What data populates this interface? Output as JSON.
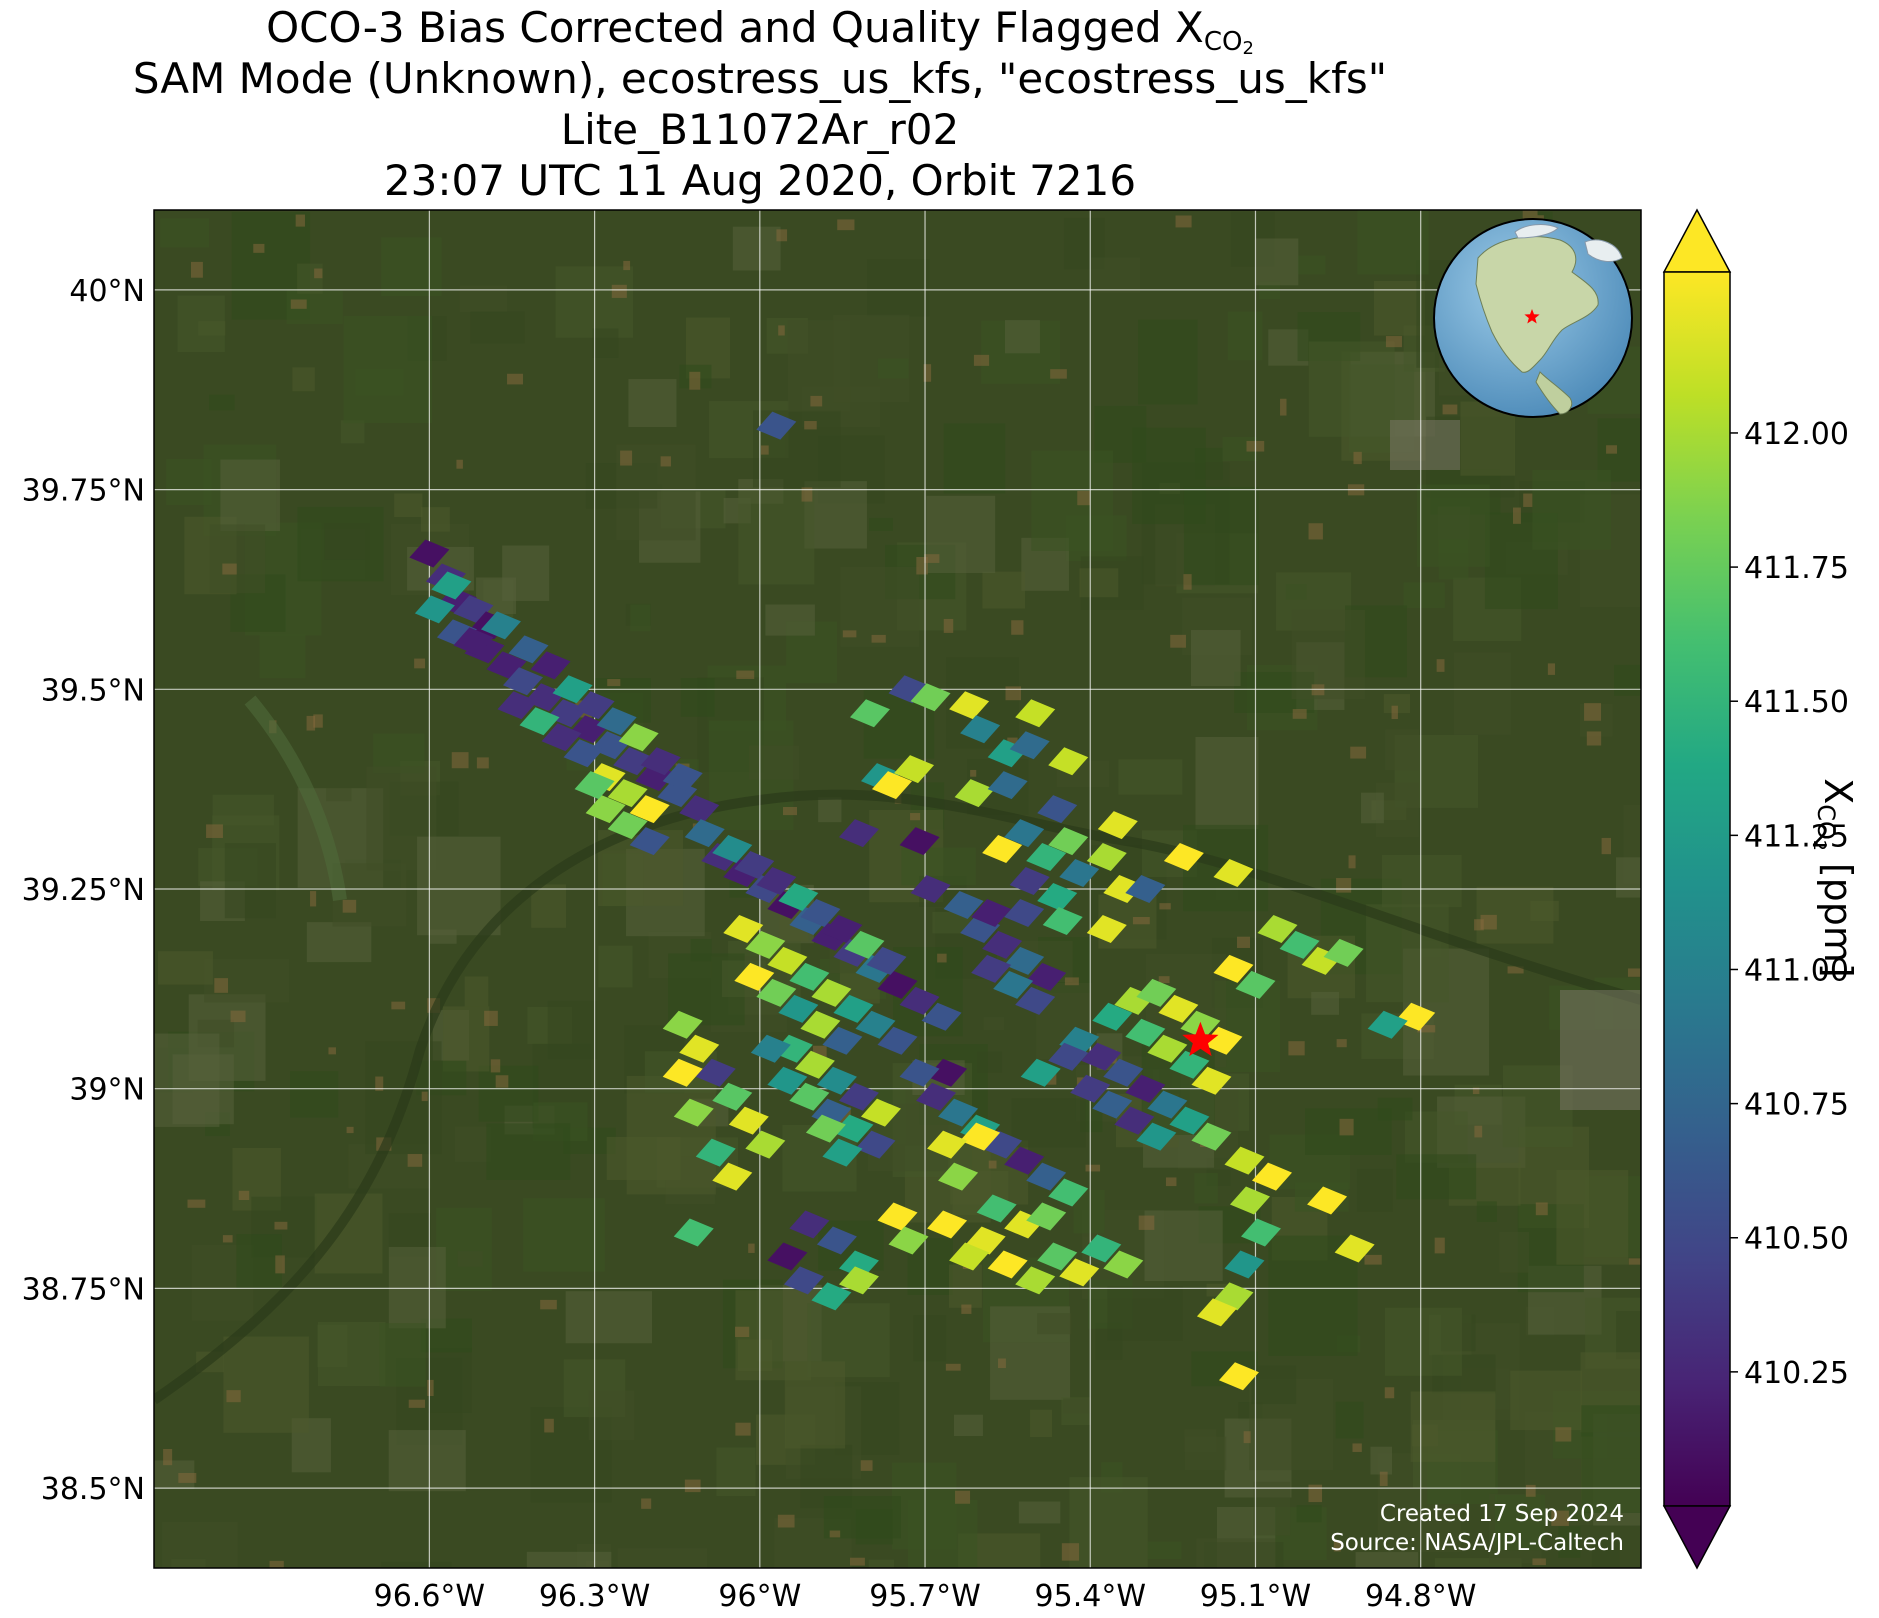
{
  "title": {
    "line1_prefix": "OCO-3 Bias Corrected and Quality Flagged X",
    "line1_sub": "CO",
    "line1_sub2": "2",
    "line2": "SAM Mode (Unknown), ecostress_us_kfs, \"ecostress_us_kfs\"",
    "line3": "Lite_B11072Ar_r02",
    "line4": "23:07 UTC 11 Aug 2020, Orbit 7216"
  },
  "map": {
    "lon_range": [
      -97.1,
      -94.4
    ],
    "lat_range": [
      38.4,
      40.1
    ],
    "lon_ticks": [
      -96.6,
      -96.3,
      -96.0,
      -95.7,
      -95.4,
      -95.1,
      -94.8
    ],
    "lon_tick_labels": [
      "96.6°W",
      "96.3°W",
      "96°W",
      "95.7°W",
      "95.4°W",
      "95.1°W",
      "94.8°W"
    ],
    "lat_ticks": [
      40.0,
      39.75,
      39.5,
      39.25,
      39.0,
      38.75,
      38.5
    ],
    "lat_tick_labels": [
      "40°N",
      "39.75°N",
      "39.5°N",
      "39.25°N",
      "39°N",
      "38.75°N",
      "38.5°N"
    ],
    "grid": true,
    "target_marker": {
      "lon": -95.2,
      "lat": 39.06,
      "symbol": "star",
      "color": "#ff0000"
    },
    "inset_globe": "north-america globe with target marker",
    "credit_line1": "Created 17 Sep 2024",
    "credit_line2": "Source: NASA/JPL-Caltech"
  },
  "colorbar": {
    "label_prefix": "X",
    "label_sub": "CO",
    "label_sub2": "2",
    "label_suffix": " [ppm]",
    "range": [
      410.0,
      412.3
    ],
    "ticks": [
      410.25,
      410.5,
      410.75,
      411.0,
      411.25,
      411.5,
      411.75,
      412.0
    ],
    "tick_labels": [
      "410.25",
      "410.50",
      "410.75",
      "411.00",
      "411.25",
      "411.50",
      "411.75",
      "412.00"
    ],
    "colormap": "viridis",
    "extend": "both"
  },
  "chart_data": {
    "type": "scatter",
    "description_units": "XCO2 ppm soundings (lon, lat, value)",
    "soundings": [
      [
        -96.6,
        39.67,
        410.1
      ],
      [
        -96.57,
        39.64,
        410.3
      ],
      [
        -96.55,
        39.61,
        410.2
      ],
      [
        -96.52,
        39.6,
        410.4
      ],
      [
        -96.49,
        39.58,
        410.1
      ],
      [
        -96.59,
        39.6,
        411.2
      ],
      [
        -96.55,
        39.57,
        410.6
      ],
      [
        -96.5,
        39.55,
        410.2
      ],
      [
        -96.46,
        39.53,
        410.2
      ],
      [
        -96.43,
        39.51,
        410.5
      ],
      [
        -96.39,
        39.49,
        410.3
      ],
      [
        -96.35,
        39.47,
        410.4
      ],
      [
        -96.31,
        39.45,
        410.2
      ],
      [
        -96.27,
        39.43,
        410.6
      ],
      [
        -96.23,
        39.41,
        410.4
      ],
      [
        -96.19,
        39.39,
        410.2
      ],
      [
        -96.15,
        39.37,
        410.6
      ],
      [
        -96.11,
        39.35,
        410.3
      ],
      [
        -96.56,
        39.63,
        411.3
      ],
      [
        -96.52,
        39.56,
        410.2
      ],
      [
        -96.47,
        39.58,
        411.0
      ],
      [
        -96.42,
        39.55,
        410.7
      ],
      [
        -96.38,
        39.53,
        410.2
      ],
      [
        -96.34,
        39.5,
        411.3
      ],
      [
        -96.3,
        39.48,
        410.4
      ],
      [
        -96.26,
        39.46,
        410.8
      ],
      [
        -96.22,
        39.44,
        411.9
      ],
      [
        -96.18,
        39.41,
        410.3
      ],
      [
        -96.14,
        39.39,
        410.6
      ],
      [
        -96.44,
        39.48,
        410.3
      ],
      [
        -96.4,
        39.46,
        411.5
      ],
      [
        -96.36,
        39.44,
        410.3
      ],
      [
        -96.32,
        39.42,
        410.6
      ],
      [
        -96.28,
        39.39,
        412.2
      ],
      [
        -96.24,
        39.37,
        412.0
      ],
      [
        -96.2,
        39.35,
        412.3
      ],
      [
        -96.24,
        39.33,
        411.8
      ],
      [
        -96.2,
        39.31,
        410.6
      ],
      [
        -96.28,
        39.35,
        411.9
      ],
      [
        -96.3,
        39.38,
        411.7
      ],
      [
        -96.1,
        39.32,
        410.8
      ],
      [
        -96.07,
        39.29,
        410.3
      ],
      [
        -96.03,
        39.27,
        410.2
      ],
      [
        -95.99,
        39.25,
        410.5
      ],
      [
        -95.95,
        39.23,
        410.1
      ],
      [
        -95.91,
        39.21,
        410.7
      ],
      [
        -95.87,
        39.19,
        410.2
      ],
      [
        -95.83,
        39.17,
        410.4
      ],
      [
        -95.79,
        39.15,
        410.9
      ],
      [
        -95.75,
        39.13,
        410.1
      ],
      [
        -95.71,
        39.11,
        410.3
      ],
      [
        -95.67,
        39.09,
        410.6
      ],
      [
        -96.05,
        39.3,
        411.1
      ],
      [
        -96.01,
        39.28,
        410.4
      ],
      [
        -95.97,
        39.26,
        410.3
      ],
      [
        -95.93,
        39.24,
        411.4
      ],
      [
        -95.89,
        39.22,
        410.6
      ],
      [
        -95.85,
        39.2,
        410.2
      ],
      [
        -95.81,
        39.18,
        411.7
      ],
      [
        -95.77,
        39.16,
        410.5
      ],
      [
        -96.03,
        39.2,
        412.2
      ],
      [
        -95.99,
        39.18,
        411.9
      ],
      [
        -95.95,
        39.16,
        412.1
      ],
      [
        -95.91,
        39.14,
        411.6
      ],
      [
        -95.87,
        39.12,
        412.0
      ],
      [
        -95.83,
        39.1,
        411.3
      ],
      [
        -95.79,
        39.08,
        411.0
      ],
      [
        -95.75,
        39.06,
        410.6
      ],
      [
        -96.01,
        39.14,
        412.3
      ],
      [
        -95.97,
        39.12,
        411.8
      ],
      [
        -95.93,
        39.1,
        411.2
      ],
      [
        -95.89,
        39.08,
        412.0
      ],
      [
        -95.85,
        39.06,
        410.7
      ],
      [
        -96.14,
        39.08,
        411.9
      ],
      [
        -96.11,
        39.05,
        412.2
      ],
      [
        -96.08,
        39.02,
        410.4
      ],
      [
        -96.05,
        38.99,
        411.7
      ],
      [
        -96.02,
        38.96,
        412.2
      ],
      [
        -95.99,
        38.93,
        412.0
      ],
      [
        -96.14,
        39.02,
        412.3
      ],
      [
        -96.12,
        38.97,
        411.9
      ],
      [
        -96.08,
        38.92,
        411.5
      ],
      [
        -96.05,
        38.89,
        412.2
      ],
      [
        -96.12,
        38.82,
        411.6
      ],
      [
        -95.95,
        39.01,
        411.2
      ],
      [
        -95.91,
        38.99,
        411.7
      ],
      [
        -95.87,
        38.97,
        410.7
      ],
      [
        -95.83,
        38.95,
        411.4
      ],
      [
        -95.79,
        38.93,
        410.5
      ],
      [
        -95.94,
        39.05,
        411.5
      ],
      [
        -95.9,
        39.03,
        412.0
      ],
      [
        -95.86,
        39.01,
        411.1
      ],
      [
        -95.82,
        38.99,
        410.4
      ],
      [
        -95.78,
        38.97,
        412.1
      ],
      [
        -95.68,
        38.99,
        410.3
      ],
      [
        -95.64,
        38.97,
        410.9
      ],
      [
        -95.6,
        38.95,
        411.3
      ],
      [
        -95.56,
        38.93,
        410.5
      ],
      [
        -95.52,
        38.91,
        410.2
      ],
      [
        -95.48,
        38.89,
        410.7
      ],
      [
        -95.44,
        38.87,
        411.6
      ],
      [
        -95.6,
        39.2,
        410.6
      ],
      [
        -95.56,
        39.18,
        410.3
      ],
      [
        -95.52,
        39.16,
        410.8
      ],
      [
        -95.48,
        39.14,
        410.2
      ],
      [
        -95.58,
        39.15,
        410.4
      ],
      [
        -95.54,
        39.13,
        410.9
      ],
      [
        -95.5,
        39.11,
        410.5
      ],
      [
        -95.42,
        39.06,
        411.0
      ],
      [
        -95.38,
        39.04,
        410.3
      ],
      [
        -95.34,
        39.02,
        410.6
      ],
      [
        -95.3,
        39.0,
        410.2
      ],
      [
        -95.26,
        38.98,
        410.9
      ],
      [
        -95.22,
        38.96,
        411.3
      ],
      [
        -95.18,
        38.94,
        411.8
      ],
      [
        -95.4,
        39.0,
        410.4
      ],
      [
        -95.36,
        38.98,
        410.7
      ],
      [
        -95.32,
        38.96,
        410.3
      ],
      [
        -95.28,
        38.94,
        411.2
      ],
      [
        -95.36,
        39.09,
        411.4
      ],
      [
        -95.32,
        39.11,
        412.0
      ],
      [
        -95.28,
        39.12,
        411.8
      ],
      [
        -95.24,
        39.1,
        412.2
      ],
      [
        -95.2,
        39.08,
        411.9
      ],
      [
        -95.16,
        39.06,
        412.3
      ],
      [
        -95.3,
        39.07,
        411.6
      ],
      [
        -95.26,
        39.05,
        412.0
      ],
      [
        -95.22,
        39.03,
        411.5
      ],
      [
        -95.18,
        39.01,
        412.2
      ],
      [
        -95.14,
        39.15,
        412.3
      ],
      [
        -95.1,
        39.13,
        411.7
      ],
      [
        -95.06,
        39.2,
        412.0
      ],
      [
        -95.02,
        39.18,
        411.6
      ],
      [
        -94.98,
        39.16,
        412.1
      ],
      [
        -94.94,
        39.17,
        411.8
      ],
      [
        -94.81,
        39.09,
        412.3
      ],
      [
        -94.86,
        39.08,
        411.3
      ],
      [
        -95.14,
        39.27,
        412.2
      ],
      [
        -95.12,
        38.91,
        412.1
      ],
      [
        -95.07,
        38.89,
        412.3
      ],
      [
        -95.11,
        38.86,
        412.0
      ],
      [
        -94.97,
        38.86,
        412.3
      ],
      [
        -95.12,
        38.78,
        411.2
      ],
      [
        -95.09,
        38.82,
        411.6
      ],
      [
        -94.92,
        38.8,
        412.2
      ],
      [
        -95.14,
        38.74,
        412.0
      ],
      [
        -95.17,
        38.72,
        412.2
      ],
      [
        -95.13,
        38.64,
        412.3
      ],
      [
        -95.59,
        38.81,
        412.2
      ],
      [
        -95.55,
        38.78,
        412.3
      ],
      [
        -95.5,
        38.76,
        412.0
      ],
      [
        -95.46,
        38.79,
        411.7
      ],
      [
        -95.42,
        38.77,
        412.2
      ],
      [
        -95.38,
        38.8,
        411.5
      ],
      [
        -95.34,
        38.78,
        411.9
      ],
      [
        -95.57,
        38.85,
        411.6
      ],
      [
        -95.52,
        38.83,
        412.2
      ],
      [
        -95.48,
        38.84,
        411.8
      ],
      [
        -95.62,
        38.79,
        412.1
      ],
      [
        -95.66,
        38.83,
        412.3
      ],
      [
        -95.75,
        38.84,
        412.3
      ],
      [
        -95.73,
        38.81,
        411.9
      ],
      [
        -95.82,
        38.78,
        411.4
      ],
      [
        -95.86,
        38.81,
        410.6
      ],
      [
        -95.91,
        38.83,
        410.3
      ],
      [
        -95.95,
        38.79,
        410.1
      ],
      [
        -95.87,
        38.74,
        411.4
      ],
      [
        -95.92,
        38.76,
        410.5
      ],
      [
        -95.82,
        38.76,
        412.0
      ],
      [
        -95.6,
        38.94,
        412.3
      ],
      [
        -95.66,
        38.93,
        412.2
      ],
      [
        -95.64,
        38.89,
        411.9
      ],
      [
        -95.98,
        39.05,
        411.0
      ],
      [
        -95.85,
        38.92,
        411.3
      ],
      [
        -95.88,
        38.95,
        411.8
      ],
      [
        -95.8,
        39.47,
        411.7
      ],
      [
        -95.73,
        39.5,
        410.5
      ],
      [
        -95.69,
        39.49,
        411.8
      ],
      [
        -95.62,
        39.48,
        412.2
      ],
      [
        -95.6,
        39.45,
        411.0
      ],
      [
        -95.55,
        39.42,
        411.3
      ],
      [
        -95.51,
        39.43,
        410.8
      ],
      [
        -95.44,
        39.41,
        412.1
      ],
      [
        -95.78,
        39.39,
        411.2
      ],
      [
        -95.72,
        39.4,
        412.1
      ],
      [
        -95.76,
        39.38,
        412.3
      ],
      [
        -95.61,
        39.37,
        412.0
      ],
      [
        -95.55,
        39.38,
        410.8
      ],
      [
        -95.46,
        39.35,
        410.6
      ],
      [
        -95.44,
        39.31,
        411.8
      ],
      [
        -95.35,
        39.33,
        412.2
      ],
      [
        -95.52,
        39.32,
        410.9
      ],
      [
        -95.48,
        39.29,
        411.5
      ],
      [
        -95.56,
        39.3,
        412.3
      ],
      [
        -95.51,
        39.26,
        410.4
      ],
      [
        -95.46,
        39.24,
        411.4
      ],
      [
        -95.42,
        39.27,
        410.9
      ],
      [
        -95.37,
        39.29,
        412.0
      ],
      [
        -95.34,
        39.25,
        412.2
      ],
      [
        -95.3,
        39.25,
        410.7
      ],
      [
        -95.23,
        39.29,
        412.3
      ],
      [
        -95.71,
        39.31,
        410.1
      ],
      [
        -95.69,
        39.25,
        410.3
      ],
      [
        -95.63,
        39.23,
        410.7
      ],
      [
        -95.58,
        39.22,
        410.2
      ],
      [
        -95.52,
        39.22,
        410.5
      ],
      [
        -95.37,
        39.2,
        412.2
      ],
      [
        -95.45,
        39.21,
        411.6
      ],
      [
        -95.82,
        39.32,
        410.3
      ],
      [
        -95.5,
        39.47,
        412.1
      ],
      [
        -95.97,
        39.83,
        410.6
      ],
      [
        -95.66,
        39.02,
        410.1
      ],
      [
        -95.71,
        39.02,
        410.6
      ],
      [
        -95.49,
        39.02,
        411.3
      ],
      [
        -95.44,
        39.04,
        410.5
      ]
    ]
  }
}
